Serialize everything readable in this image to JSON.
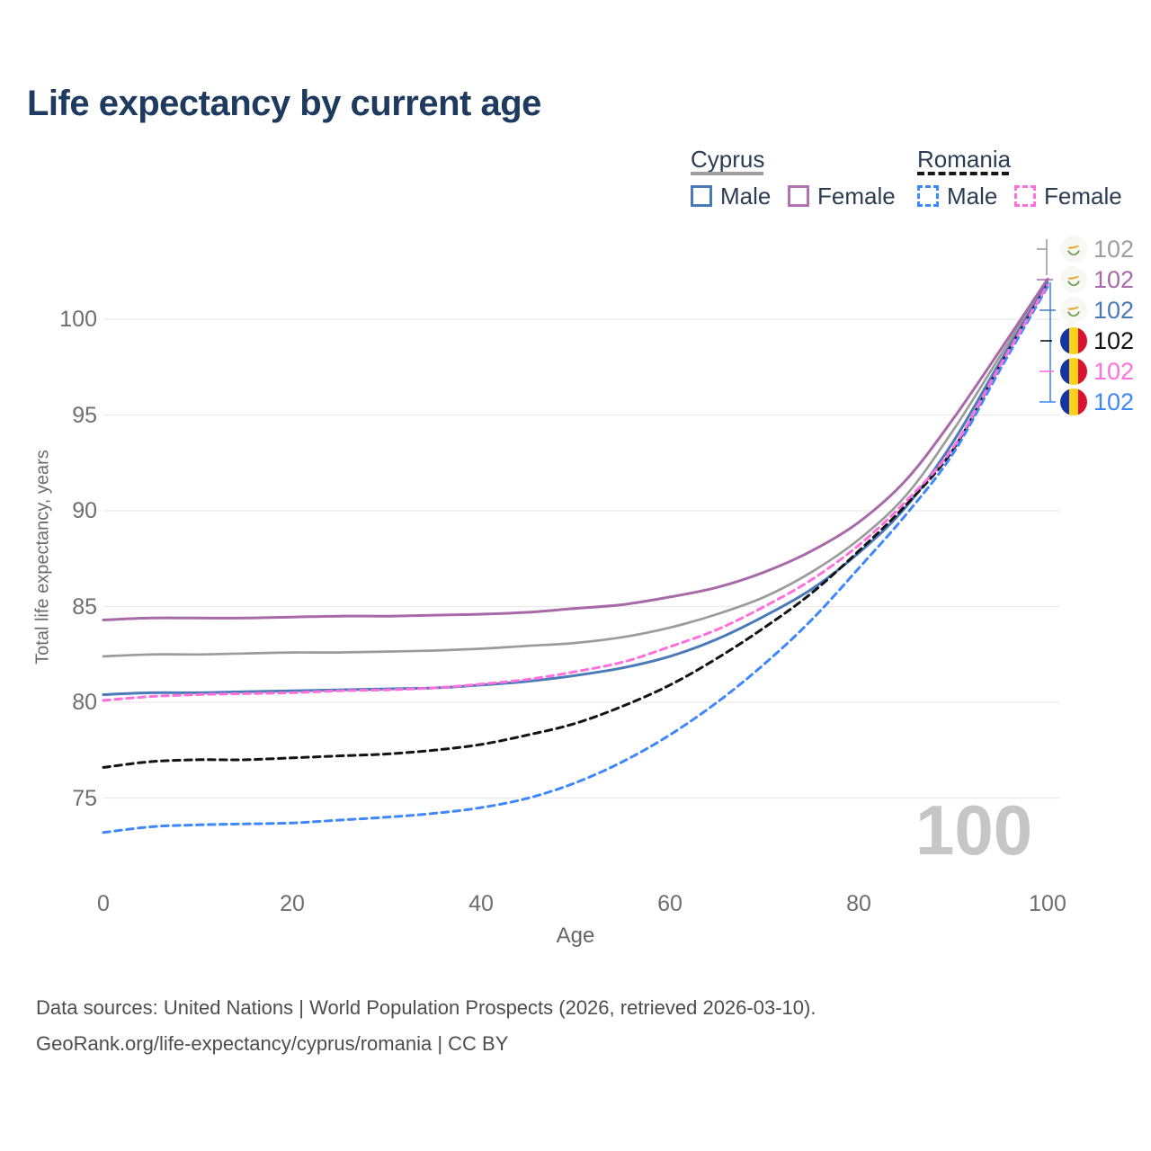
{
  "title": "Life expectancy by current age",
  "legend": {
    "cyprus": {
      "label": "Cyprus",
      "male": "Male",
      "female": "Female",
      "line_style": "solid"
    },
    "romania": {
      "label": "Romania",
      "male": "Male",
      "female": "Female",
      "line_style": "dashed"
    }
  },
  "axis": {
    "x_label": "Age",
    "y_label": "Total life expectancy, years"
  },
  "hover": {
    "age_indicator": "100"
  },
  "endpoint_labels": [
    {
      "flag": "cyprus-flag-icon",
      "value": "102",
      "color": "#9e9e9e"
    },
    {
      "flag": "cyprus-flag-icon",
      "value": "102",
      "color": "#a869a8"
    },
    {
      "flag": "cyprus-flag-icon",
      "value": "102",
      "color": "#4a7ab8"
    },
    {
      "flag": "romania-flag-icon",
      "value": "102",
      "color": "#111111"
    },
    {
      "flag": "romania-flag-icon",
      "value": "102",
      "color": "#ff70dd"
    },
    {
      "flag": "romania-flag-icon",
      "value": "102",
      "color": "#3f87fc"
    }
  ],
  "footer": {
    "line1": "Data sources: United Nations | World Population Prospects (2026, retrieved 2026-03-10).",
    "line2": "GeoRank.org/life-expectancy/cyprus/romania | CC BY"
  },
  "colors": {
    "title": "#1e3a5f",
    "gridline": "#eaeaea",
    "cyprus_male": "#4a7ab8",
    "cyprus_female": "#a869a8",
    "cyprus_both": "#9b9b9b",
    "romania_male": "#3f87fc",
    "romania_female": "#ff70dd",
    "romania_both": "#141414",
    "watermark": "#c6c6c6"
  },
  "chart_data": {
    "type": "line",
    "title": "Life expectancy by current age",
    "xlabel": "Age",
    "ylabel": "Total life expectancy, years",
    "xlim": [
      0,
      100
    ],
    "ylim": [
      72.5,
      103
    ],
    "x_ticks": [
      0,
      20,
      40,
      60,
      80,
      100
    ],
    "y_ticks": [
      75,
      80,
      85,
      90,
      95,
      100
    ],
    "grid": "horizontal",
    "legend_position": "top-right",
    "x": [
      0,
      5,
      10,
      15,
      20,
      25,
      30,
      35,
      40,
      45,
      50,
      55,
      60,
      65,
      70,
      75,
      80,
      85,
      90,
      95,
      100
    ],
    "series": [
      {
        "id": "cyprus-both",
        "name": "Cyprus (both sexes)",
        "color": "#9b9b9b",
        "style": "solid",
        "width": 2.7,
        "values": [
          82.4,
          82.5,
          82.5,
          82.55,
          82.6,
          82.6,
          82.65,
          82.7,
          82.8,
          82.95,
          83.1,
          83.4,
          83.9,
          84.6,
          85.5,
          86.8,
          88.5,
          90.8,
          94.2,
          98.1,
          102.0
        ]
      },
      {
        "id": "cyprus-female",
        "name": "Cyprus Female",
        "color": "#a869a8",
        "style": "solid",
        "width": 3,
        "values": [
          84.3,
          84.4,
          84.4,
          84.4,
          84.45,
          84.5,
          84.5,
          84.55,
          84.6,
          84.7,
          84.9,
          85.1,
          85.5,
          86.0,
          86.8,
          87.9,
          89.4,
          91.6,
          94.8,
          98.4,
          102.1
        ]
      },
      {
        "id": "cyprus-male",
        "name": "Cyprus Male",
        "color": "#4a7ab8",
        "style": "solid",
        "width": 3,
        "values": [
          80.4,
          80.5,
          80.5,
          80.55,
          80.6,
          80.65,
          80.7,
          80.75,
          80.9,
          81.1,
          81.4,
          81.8,
          82.4,
          83.3,
          84.5,
          85.9,
          87.8,
          90.2,
          93.6,
          97.8,
          101.9
        ]
      },
      {
        "id": "romania-both",
        "name": "Romania (both sexes)",
        "color": "#141414",
        "style": "dashed",
        "width": 3,
        "values": [
          76.6,
          76.9,
          77.0,
          77.0,
          77.1,
          77.2,
          77.3,
          77.5,
          77.8,
          78.3,
          78.9,
          79.8,
          80.9,
          82.3,
          83.9,
          85.7,
          87.9,
          90.3,
          93.2,
          97.6,
          101.8
        ]
      },
      {
        "id": "romania-male",
        "name": "Romania Male",
        "color": "#3f87fc",
        "style": "dashed",
        "width": 3,
        "values": [
          73.2,
          73.5,
          73.6,
          73.65,
          73.7,
          73.85,
          74.0,
          74.2,
          74.5,
          75.0,
          75.8,
          76.9,
          78.3,
          80.0,
          82.0,
          84.3,
          87.0,
          89.8,
          93.0,
          97.4,
          101.7
        ]
      },
      {
        "id": "romania-female",
        "name": "Romania Female",
        "color": "#ff70dd",
        "style": "dashed",
        "width": 3,
        "values": [
          80.1,
          80.3,
          80.4,
          80.45,
          80.5,
          80.6,
          80.65,
          80.75,
          80.95,
          81.2,
          81.6,
          82.1,
          82.9,
          83.8,
          85.0,
          86.4,
          88.2,
          90.5,
          93.3,
          97.6,
          101.8
        ]
      }
    ]
  }
}
